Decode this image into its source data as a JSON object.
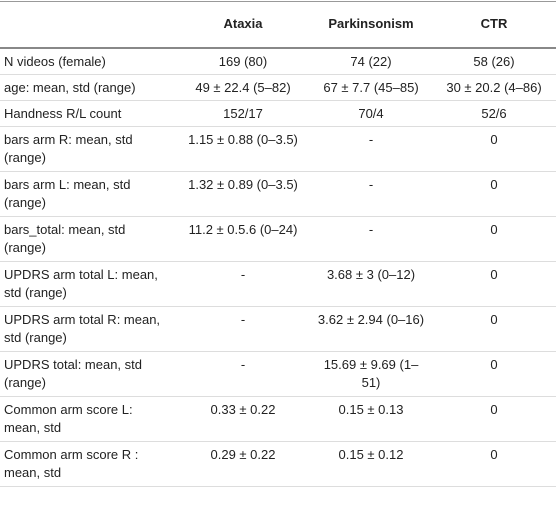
{
  "table": {
    "columns": [
      "Ataxia",
      "Parkinsonism",
      "CTR"
    ],
    "rows": [
      [
        "N videos (female)",
        "169 (80)",
        "74 (22)",
        "58 (26)"
      ],
      [
        "age: mean, std (range)",
        "49 ± 22.4 (5–82)",
        "67 ± 7.7 (45–85)",
        "30 ± 20.2 (4–86)"
      ],
      [
        "Handness R/L count",
        "152/17",
        "70/4",
        "52/6"
      ],
      [
        "bars arm R: mean, std (range)",
        "1.15 ± 0.88 (0–3.5)",
        "-",
        "0"
      ],
      [
        "bars arm L: mean, std (range)",
        "1.32 ± 0.89 (0–3.5)",
        "-",
        "0"
      ],
      [
        "bars_total: mean, std (range)",
        "11.2 ± 0.5.6 (0–24)",
        "-",
        "0"
      ],
      [
        "UPDRS arm total L: mean, std (range)",
        "-",
        "3.68 ± 3 (0–12)",
        "0"
      ],
      [
        "UPDRS arm total R: mean, std (range)",
        "-",
        "3.62 ± 2.94 (0–16)",
        "0"
      ],
      [
        "UPDRS total: mean, std (range)",
        "-",
        "15.69 ± 9.69 (1–51)",
        "0"
      ],
      [
        "Common arm score L: mean, std",
        "0.33 ± 0.22",
        "0.15 ± 0.13",
        "0"
      ],
      [
        "Common arm score R : mean, std",
        "0.29 ± 0.22",
        "0.15 ± 0.12",
        "0"
      ]
    ]
  }
}
